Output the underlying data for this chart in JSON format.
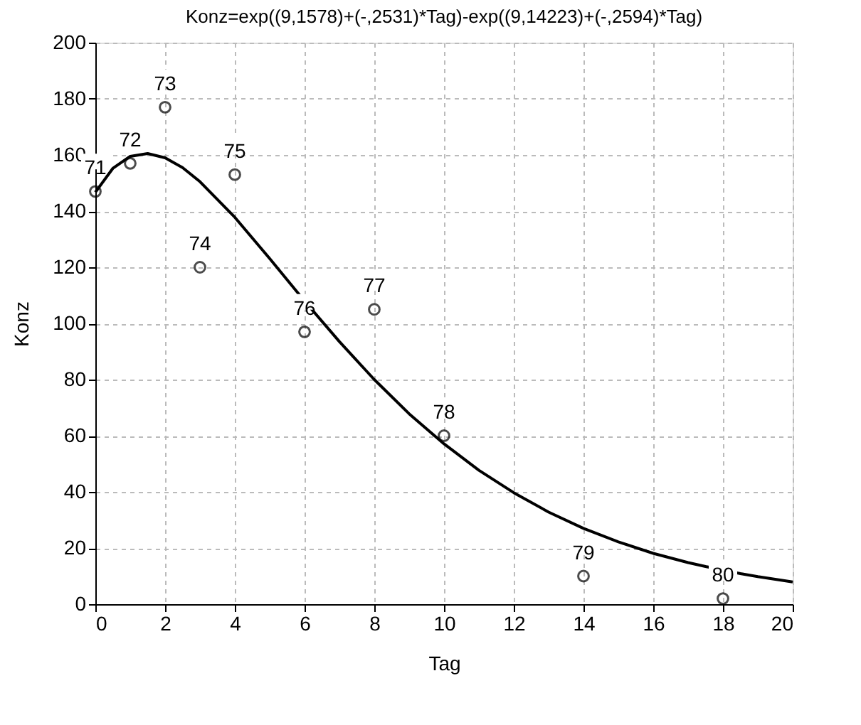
{
  "chart_data": {
    "type": "scatter",
    "title": "Konz=exp((9,1578)+(-,2531)*Tag)-exp((9,14223)+(-,2594)*Tag)",
    "xlabel": "Tag",
    "ylabel": "Konz",
    "xlim": [
      0,
      20
    ],
    "xticks": [
      0,
      2,
      4,
      6,
      8,
      10,
      12,
      14,
      16,
      18,
      20
    ],
    "ylim": [
      0,
      200
    ],
    "yticks": [
      0,
      20,
      40,
      60,
      80,
      100,
      120,
      140,
      160,
      180,
      200
    ],
    "grid": true,
    "series": [
      {
        "type": "scatter",
        "marker": "circle",
        "color": "#000000",
        "x": [
          0,
          1,
          2,
          3,
          4,
          6,
          8,
          10,
          14,
          18
        ],
        "values": [
          147,
          157,
          177,
          120,
          153,
          97,
          105,
          60,
          10,
          2
        ]
      },
      {
        "type": "line",
        "marker": "none",
        "line_style": "solid",
        "color": "#000000",
        "x": [
          0,
          0.5,
          1,
          1.5,
          2,
          2.5,
          3,
          4,
          5,
          6,
          7,
          8,
          9,
          10,
          11,
          12,
          13,
          14,
          15,
          16,
          17,
          17.5,
          18.5,
          19,
          20
        ],
        "values": [
          146.7,
          155.2,
          159.5,
          160.5,
          159.0,
          155.5,
          150.5,
          137.8,
          123.1,
          108.0,
          93.5,
          80.0,
          67.8,
          57.1,
          47.7,
          39.7,
          32.8,
          27.0,
          22.2,
          18.1,
          14.8,
          13.4,
          10.9,
          9.8,
          7.9
        ]
      }
    ],
    "annotations": [
      {
        "text": "71",
        "x": 0,
        "y": 147
      },
      {
        "text": "72",
        "x": 1,
        "y": 157
      },
      {
        "text": "73",
        "x": 2,
        "y": 177
      },
      {
        "text": "74",
        "x": 3,
        "y": 120
      },
      {
        "text": "75",
        "x": 4,
        "y": 153
      },
      {
        "text": "76",
        "x": 6,
        "y": 97
      },
      {
        "text": "77",
        "x": 8,
        "y": 105
      },
      {
        "text": "78",
        "x": 10,
        "y": 60
      },
      {
        "text": "79",
        "x": 14,
        "y": 10
      },
      {
        "text": "80",
        "x": 18,
        "y": 2
      }
    ]
  }
}
